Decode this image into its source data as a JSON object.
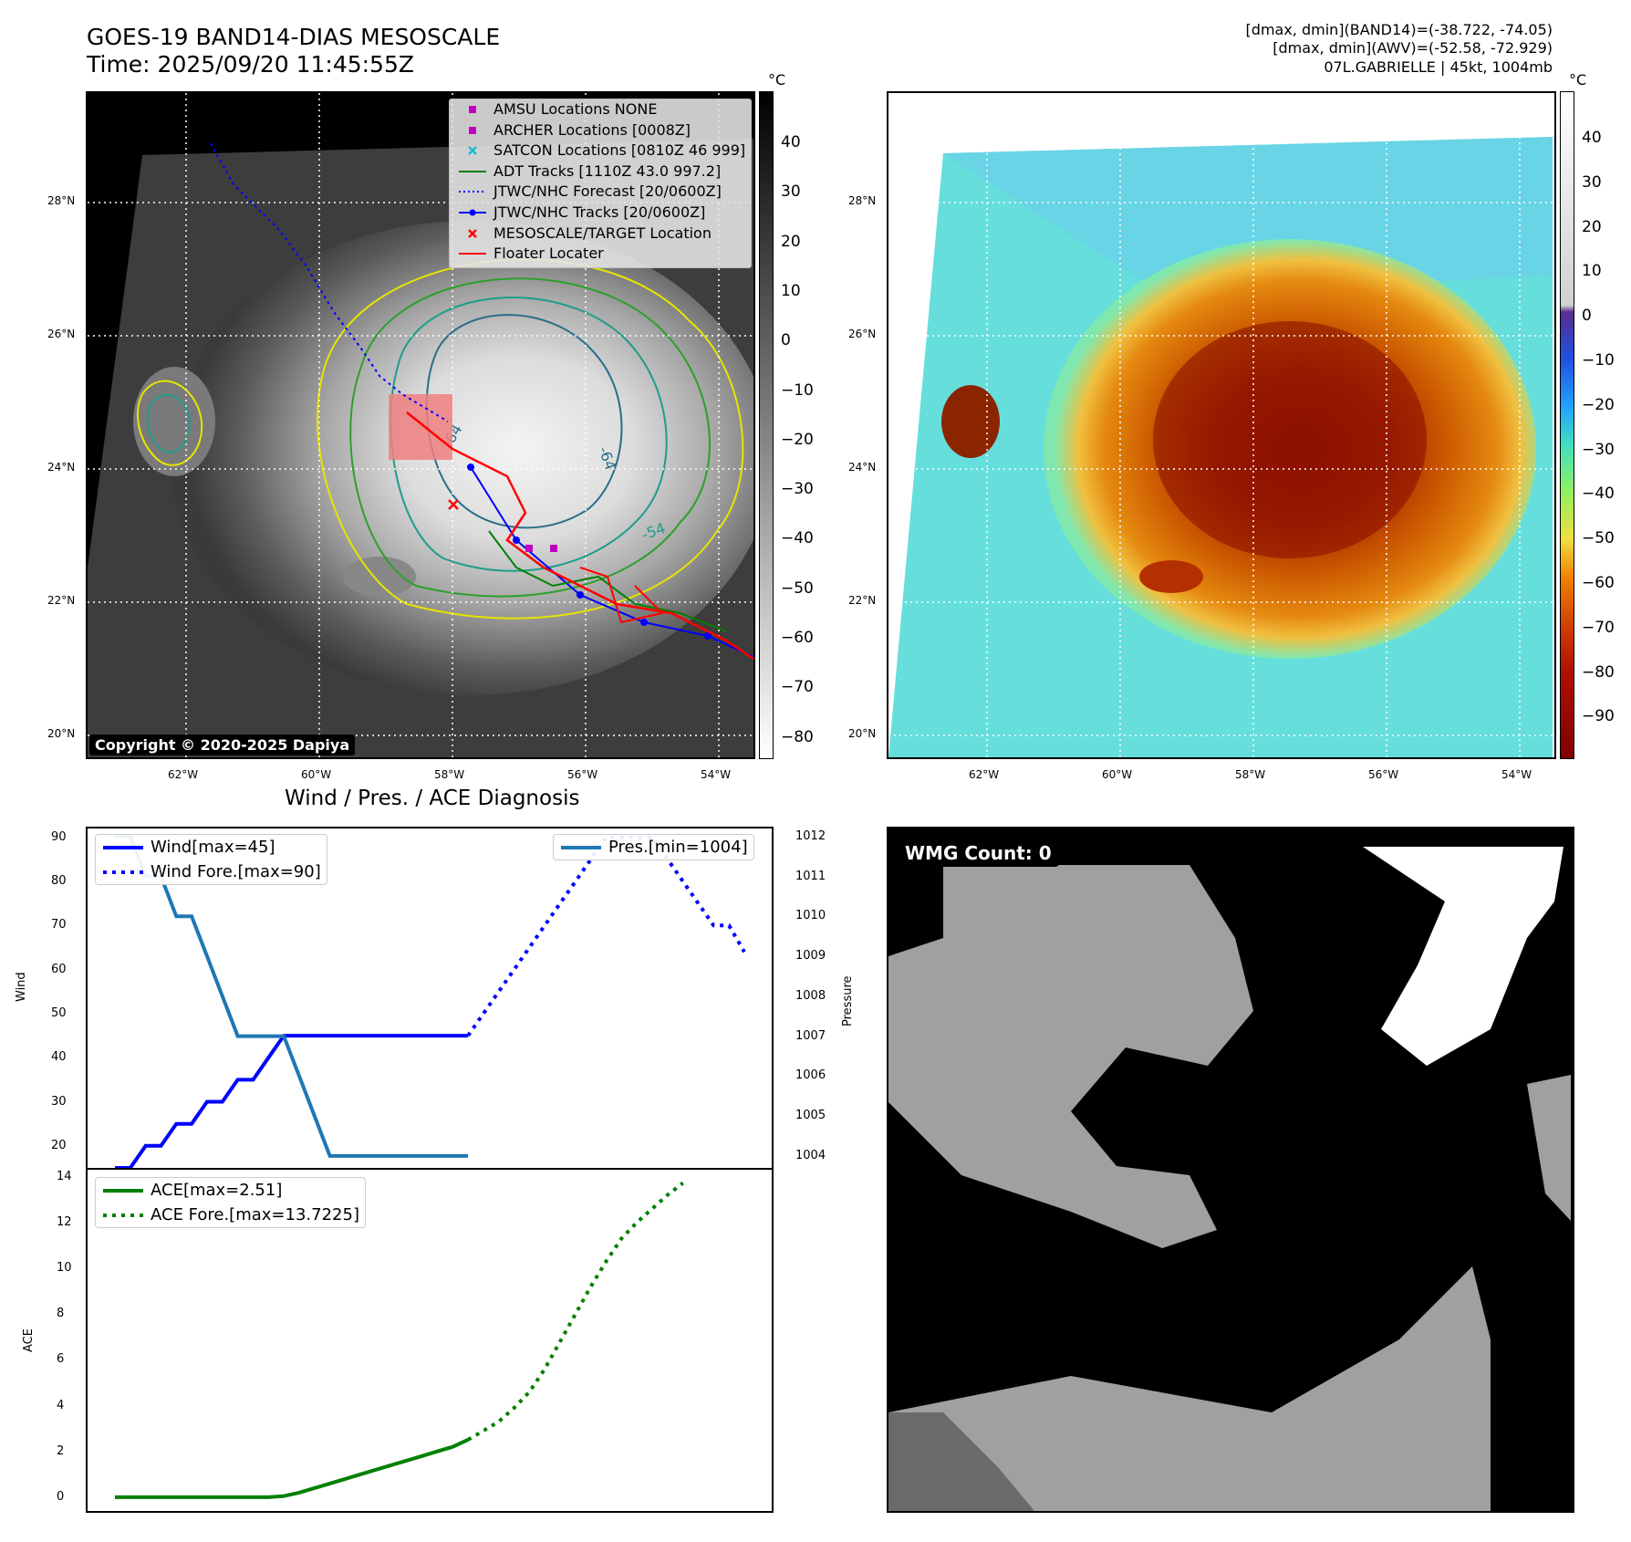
{
  "header": {
    "title_line1": "GOES-19 BAND14-DIAS MESOSCALE",
    "title_line2": "Time: 2025/09/20 11:45:55Z",
    "info_line1": "[dmax, dmin](BAND14)=(-38.722, -74.05)",
    "info_line2": "[dmax, dmin](AWV)=(-52.58, -72.929)",
    "info_line3": "07L.GABRIELLE | 45kt, 1004mb"
  },
  "map": {
    "lat_labels": [
      "28°N",
      "26°N",
      "24°N",
      "22°N",
      "20°N"
    ],
    "lon_labels": [
      "62°W",
      "60°W",
      "58°W",
      "56°W",
      "54°W"
    ],
    "contour_labels": [
      "-64",
      "-64",
      "-54"
    ],
    "copyright": "Copyright © 2020-2025 Dapiya",
    "legend": [
      {
        "label": "AMSU Locations NONE",
        "symbol": "square",
        "color": "#bf00bf"
      },
      {
        "label": "ARCHER Locations [0008Z]",
        "symbol": "square",
        "color": "#bf00bf"
      },
      {
        "label": "SATCON Locations [0810Z 46 999]",
        "symbol": "x",
        "color": "#17becf"
      },
      {
        "label": "ADT Tracks [1110Z 43.0 997.2]",
        "symbol": "line",
        "color": "#008000"
      },
      {
        "label": "JTWC/NHC Forecast [20/0600Z]",
        "symbol": "dotted",
        "color": "#0000ff"
      },
      {
        "label": "JTWC/NHC Tracks [20/0600Z]",
        "symbol": "line-dot",
        "color": "#0000ff"
      },
      {
        "label": "MESOSCALE/TARGET Location",
        "symbol": "x",
        "color": "#ff0000"
      },
      {
        "label": "Floater Locater",
        "symbol": "line",
        "color": "#ff0000"
      }
    ]
  },
  "colorbar_gray": {
    "unit": "°C",
    "ticks": [
      "40",
      "30",
      "20",
      "10",
      "0",
      "−10",
      "−20",
      "−30",
      "−40",
      "−50",
      "−60",
      "−70",
      "−80"
    ]
  },
  "colorbar_color": {
    "unit": "°C",
    "ticks": [
      "40",
      "30",
      "20",
      "10",
      "0",
      "−10",
      "−20",
      "−30",
      "−40",
      "−50",
      "−60",
      "−70",
      "−80",
      "−90"
    ]
  },
  "wmg": {
    "label": "WMG Count: 0"
  },
  "chart_data": [
    {
      "type": "line",
      "title": "Wind / Pres. / ACE Diagnosis",
      "ylabel": "Wind",
      "ylabel_right": "Pressure",
      "ylim": [
        15,
        92
      ],
      "ylim_right": [
        1003.7,
        1012.2
      ],
      "yticks": [
        "90",
        "80",
        "70",
        "60",
        "50",
        "40",
        "30",
        "20"
      ],
      "yticks_right": [
        "1012",
        "1011",
        "1010",
        "1009",
        "1008",
        "1007",
        "1006",
        "1005",
        "1004"
      ],
      "series": [
        {
          "name": "Wind[max=45]",
          "color": "#0000ff",
          "style": "solid",
          "axis": "left",
          "values": [
            15,
            15,
            20,
            20,
            25,
            25,
            30,
            30,
            35,
            35,
            40,
            45,
            45,
            45,
            45,
            45,
            45,
            45,
            45,
            45,
            45,
            45,
            45,
            45
          ]
        },
        {
          "name": "Wind Fore.[max=90]",
          "color": "#0000ff",
          "style": "dotted",
          "axis": "left",
          "offset": 23,
          "values": [
            45,
            50,
            55,
            60,
            65,
            70,
            75,
            80,
            85,
            90,
            90,
            90,
            90,
            85,
            80,
            75,
            70,
            70,
            64
          ]
        },
        {
          "name": "Pres.[min=1004]",
          "color": "#1f77b4",
          "style": "solid",
          "axis": "right",
          "values": [
            1012,
            1012,
            1011,
            1011,
            1010,
            1010,
            1009,
            1008,
            1007,
            1007,
            1007,
            1007,
            1006,
            1005,
            1004,
            1004,
            1004,
            1004,
            1004,
            1004,
            1004,
            1004,
            1004,
            1004
          ]
        }
      ]
    },
    {
      "type": "line",
      "ylabel": "ACE",
      "ylim": [
        -0.6,
        14.3
      ],
      "yticks": [
        "14",
        "12",
        "10",
        "8",
        "6",
        "4",
        "2",
        "0"
      ],
      "series": [
        {
          "name": "ACE[max=2.51]",
          "color": "#008000",
          "style": "solid",
          "values": [
            0,
            0,
            0,
            0,
            0,
            0,
            0,
            0,
            0,
            0,
            0,
            0.05,
            0.2,
            0.4,
            0.6,
            0.8,
            1.0,
            1.2,
            1.4,
            1.6,
            1.8,
            2.0,
            2.2,
            2.51
          ]
        },
        {
          "name": "ACE Fore.[max=13.7225]",
          "color": "#008000",
          "style": "dotted",
          "offset": 23,
          "values": [
            2.51,
            2.9,
            3.3,
            3.9,
            4.6,
            5.6,
            6.8,
            8.0,
            9.2,
            10.3,
            11.3,
            12.0,
            12.6,
            13.2,
            13.7225
          ]
        }
      ]
    }
  ]
}
